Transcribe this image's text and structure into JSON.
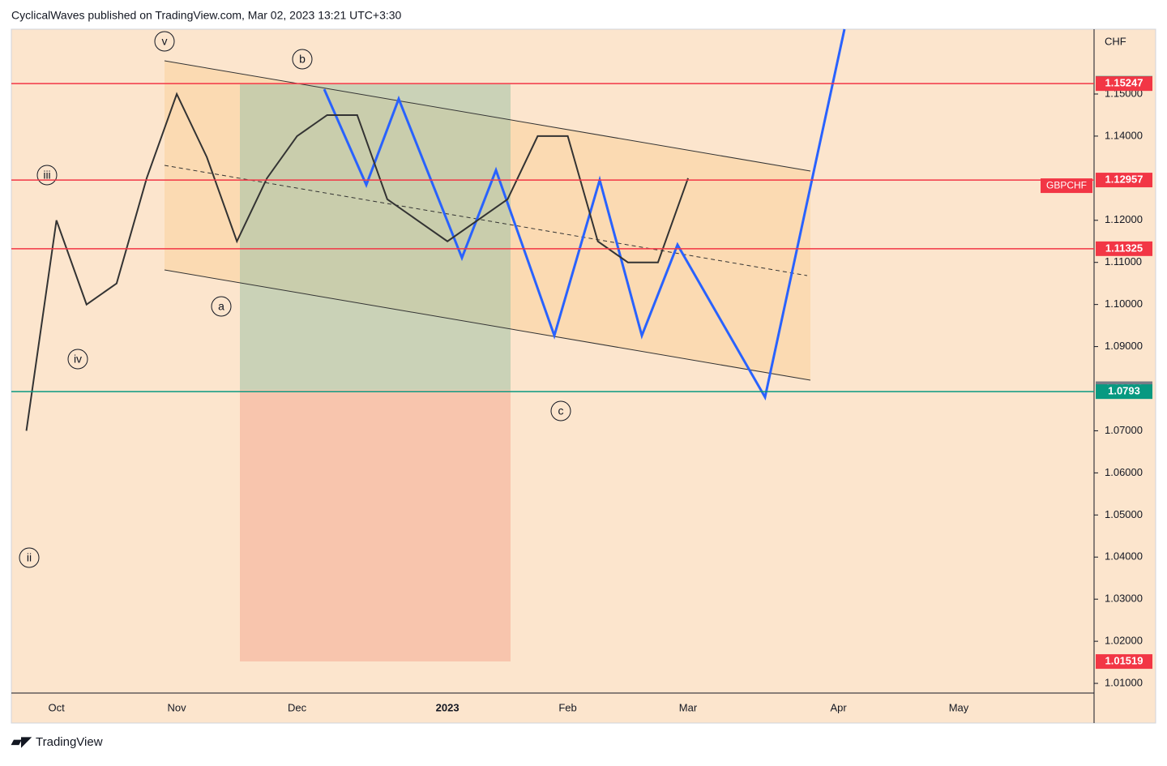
{
  "header": {
    "text": "CyclicalWaves published on TradingView.com, Mar 02, 2023 13:21 UTC+3:30"
  },
  "footer": {
    "brand": "TradingView"
  },
  "chart_data": {
    "type": "line",
    "symbol": "GBPCHF",
    "currency": "CHF",
    "categories": [
      null,
      "Oct",
      null,
      null,
      null,
      "Nov",
      null,
      null,
      null,
      "Dec",
      null,
      null,
      null,
      null,
      "2023",
      null,
      null,
      null,
      "Feb",
      null,
      null,
      null,
      "Mar",
      null,
      null,
      null,
      null,
      "Apr",
      null,
      null,
      null,
      "May",
      null,
      null,
      null,
      null
    ],
    "series": [
      {
        "name": "GBPCHF",
        "color": "#333333",
        "values": [
          1.07,
          1.12,
          1.1,
          1.105,
          1.13,
          1.15,
          1.135,
          1.115,
          1.13,
          1.14,
          1.145,
          1.145,
          1.125,
          1.12,
          1.115,
          1.12,
          1.125,
          1.14,
          1.14,
          1.115,
          1.11,
          1.11,
          1.13,
          null,
          null,
          null,
          null,
          null,
          null,
          null,
          null,
          null,
          null,
          null,
          null,
          null
        ]
      }
    ],
    "ylim": [
      1.0077,
      1.1654
    ],
    "yticks": [
      {
        "value": 1.01,
        "label": "1.01000"
      },
      {
        "value": 1.02,
        "label": "1.02000"
      },
      {
        "value": 1.03,
        "label": "1.03000"
      },
      {
        "value": 1.04,
        "label": "1.04000"
      },
      {
        "value": 1.05,
        "label": "1.05000"
      },
      {
        "value": 1.06,
        "label": "1.06000"
      },
      {
        "value": 1.07,
        "label": "1.07000"
      },
      {
        "value": 1.09,
        "label": "1.09000"
      },
      {
        "value": 1.1,
        "label": "1.10000"
      },
      {
        "value": 1.11,
        "label": "1.11000"
      },
      {
        "value": 1.12,
        "label": "1.12000"
      },
      {
        "value": 1.14,
        "label": "1.14000"
      },
      {
        "value": 1.15,
        "label": "1.15000"
      }
    ],
    "price_tags": [
      {
        "value": 1.15255,
        "color": "#089981"
      },
      {
        "value": 1.15247,
        "color": "#f23645",
        "line": true
      },
      {
        "value": 1.12957,
        "color": "#f23645",
        "line": true
      },
      {
        "value": 1.11325,
        "color": "#f23645",
        "line": true
      },
      {
        "value": {
          "value": 1.08,
          "label": "1.08000"
        },
        "color": "#787b86"
      },
      {
        "value": 1.0793,
        "color": "#089981",
        "line": true
      },
      {
        "value": 1.01519,
        "color": "#f23645"
      }
    ],
    "wave_labels": [
      "v",
      "b",
      "iii",
      "a",
      "iv",
      "ii",
      "c"
    ]
  }
}
